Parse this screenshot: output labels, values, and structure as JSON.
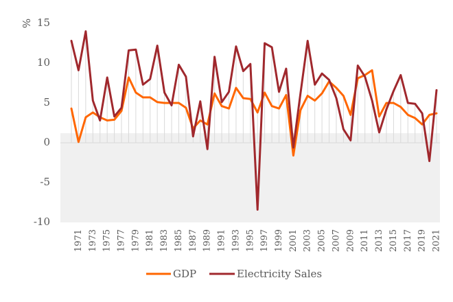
{
  "chart_data": {
    "type": "line",
    "title": "",
    "xlabel": "",
    "ylabel": "%",
    "ylim": [
      -10,
      15
    ],
    "yticks": [
      -10,
      -5,
      0,
      5,
      10,
      15
    ],
    "ytick_labels": [
      "-10",
      "-5",
      "0",
      "5",
      "10",
      "15"
    ],
    "x": [
      1970,
      1971,
      1972,
      1973,
      1974,
      1975,
      1976,
      1977,
      1978,
      1979,
      1980,
      1981,
      1982,
      1983,
      1984,
      1985,
      1986,
      1987,
      1988,
      1989,
      1990,
      1991,
      1992,
      1993,
      1994,
      1995,
      1996,
      1997,
      1998,
      1999,
      2000,
      2001,
      2002,
      2003,
      2004,
      2005,
      2006,
      2007,
      2008,
      2009,
      2010,
      2011,
      2012,
      2013,
      2014,
      2015,
      2016,
      2017,
      2018,
      2019,
      2020,
      2021
    ],
    "xtick_labels": [
      "1971",
      "1973",
      "1975",
      "1977",
      "1979",
      "1981",
      "1983",
      "1985",
      "1987",
      "1989",
      "1991",
      "1993",
      "1995",
      "1997",
      "1999",
      "2001",
      "2003",
      "2005",
      "2007",
      "2009",
      "2011",
      "2013",
      "2015",
      "2017",
      "2019",
      "2021"
    ],
    "shaded_band": {
      "from": -10,
      "to": 1.2,
      "color": "#f0f0f0"
    },
    "grid": "vertical",
    "legend_position": "bottom",
    "series": [
      {
        "name": "GDP",
        "color": "#ff6600",
        "values": [
          4.3,
          0.1,
          3.2,
          3.8,
          3.2,
          2.8,
          2.9,
          4.0,
          8.2,
          6.3,
          5.7,
          5.7,
          5.1,
          5.0,
          5.0,
          5.0,
          4.4,
          1.8,
          2.8,
          2.3,
          6.2,
          4.6,
          4.3,
          6.9,
          5.6,
          5.5,
          3.8,
          6.3,
          4.6,
          4.3,
          6.0,
          -1.6,
          4.1,
          5.9,
          5.3,
          6.2,
          7.7,
          6.9,
          5.9,
          3.5,
          8.1,
          8.5,
          9.1,
          3.3,
          5.0,
          5.0,
          4.5,
          3.5,
          3.1,
          2.3,
          3.5,
          3.7
        ]
      },
      {
        "name": "Electricity Sales",
        "color": "#a0282d",
        "values": [
          12.8,
          9.1,
          14.0,
          5.3,
          2.8,
          8.2,
          3.3,
          4.4,
          11.6,
          11.7,
          7.3,
          8.0,
          12.2,
          6.3,
          4.7,
          9.8,
          8.3,
          0.8,
          5.2,
          -0.8,
          10.8,
          5.1,
          6.4,
          12.1,
          9.0,
          9.9,
          -8.4,
          12.5,
          12.0,
          6.4,
          9.3,
          -0.6,
          6.2,
          12.8,
          7.3,
          8.7,
          7.9,
          5.6,
          1.7,
          0.3,
          9.7,
          8.3,
          5.3,
          1.3,
          4.2,
          6.5,
          8.5,
          5.0,
          4.9,
          3.7,
          -2.3,
          6.6
        ]
      }
    ]
  }
}
